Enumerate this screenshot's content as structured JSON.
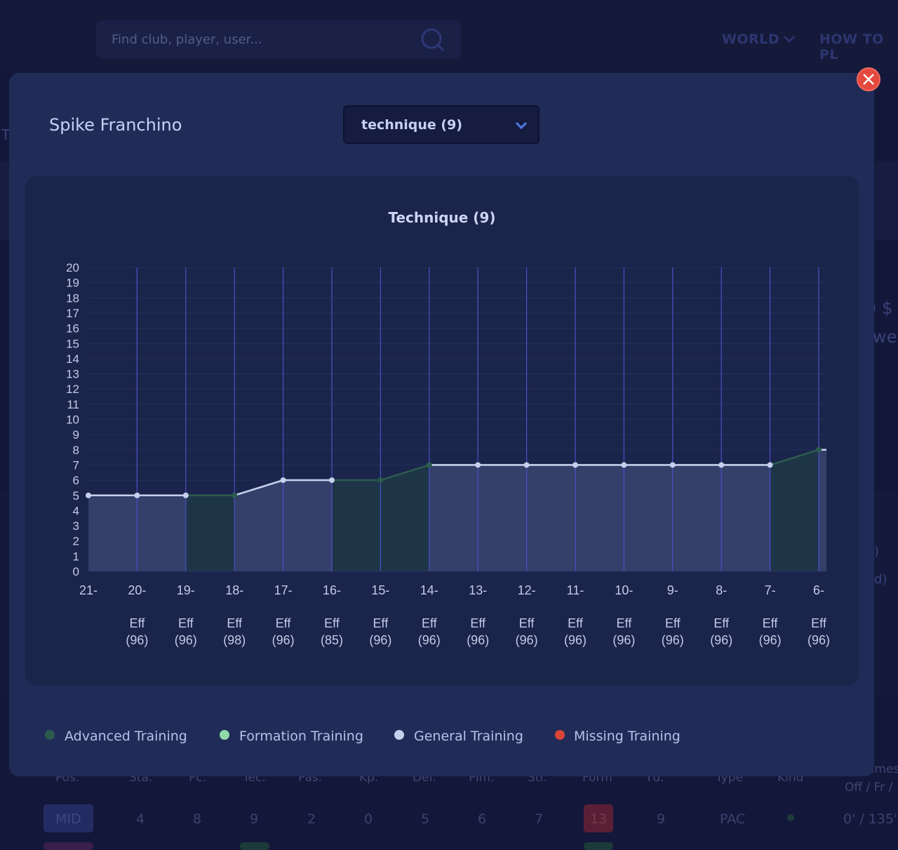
{
  "header": {
    "search_placeholder": "Find club, player, user...",
    "nav_world": "WORLD",
    "nav_how_to_play": "HOW TO PL"
  },
  "background": {
    "table_headers": [
      "Pos.",
      "Sta.",
      "Pc.",
      "Tec.",
      "Pas.",
      "Kp.",
      "Def.",
      "Pim.",
      "Str.",
      "Form",
      "Td.",
      "Type",
      "Kind"
    ],
    "row": {
      "pos": "MID",
      "sta": "4",
      "pc": "8",
      "tec": "9",
      "pas": "2",
      "kp": "0",
      "def": "5",
      "pim": "6",
      "str": "7",
      "form": "13",
      "td": "9",
      "type": "PAC",
      "games": "0' / 135'"
    },
    "games_header_1": "ames",
    "games_header_2": "Off / Fr /",
    "side_money": ") $",
    "side_week": "wee",
    "side_paren_1": ")",
    "side_paren_2": "d)",
    "left_t": "T"
  },
  "modal": {
    "player_name": "Spike Franchino",
    "attribute_select": "technique (9)"
  },
  "chart_data": {
    "type": "line",
    "title": "Technique (9)",
    "ylim": [
      0,
      20
    ],
    "yticks": [
      "0",
      "1",
      "2",
      "3",
      "4",
      "5",
      "6",
      "7",
      "8",
      "9",
      "10",
      "11",
      "12",
      "13",
      "14",
      "15",
      "16",
      "17",
      "18",
      "19",
      "20"
    ],
    "categories": [
      "21-",
      "20-",
      "19-",
      "18-",
      "17-",
      "16-",
      "15-",
      "14-",
      "13-",
      "12-",
      "11-",
      "10-",
      "9-",
      "8-",
      "7-",
      "6-"
    ],
    "efficiency_labels": [
      "",
      "Eff",
      "Eff",
      "Eff",
      "Eff",
      "Eff",
      "Eff",
      "Eff",
      "Eff",
      "Eff",
      "Eff",
      "Eff",
      "Eff",
      "Eff",
      "Eff",
      "Eff"
    ],
    "efficiency_values": [
      "",
      "(96)",
      "(96)",
      "(98)",
      "(96)",
      "(85)",
      "(96)",
      "(96)",
      "(96)",
      "(96)",
      "(96)",
      "(96)",
      "(96)",
      "(96)",
      "(96)",
      "(96)"
    ],
    "values": [
      5,
      5,
      5,
      5,
      6,
      6,
      6,
      7,
      7,
      7,
      7,
      7,
      7,
      7,
      7,
      8
    ],
    "training_types": [
      "general",
      "general",
      "general",
      "advanced",
      "general",
      "general",
      "advanced",
      "advanced",
      "general",
      "general",
      "general",
      "general",
      "general",
      "general",
      "general",
      "advanced"
    ],
    "colors": {
      "advanced": "#2b5a4f",
      "general": "#c7cfee",
      "formation": "#8fd9a9",
      "missing": "#d8453a",
      "grid_vertical": "#4b52c9",
      "grid_horizontal": "#262f5c",
      "area_general": "#343f6a",
      "area_advanced": "#1d3547"
    }
  },
  "legend": [
    {
      "label": "Advanced Training",
      "color": "#2b5a4f"
    },
    {
      "label": "Formation Training",
      "color": "#8fd9a9"
    },
    {
      "label": "General Training",
      "color": "#c7cfee"
    },
    {
      "label": "Missing Training",
      "color": "#d8453a"
    }
  ]
}
